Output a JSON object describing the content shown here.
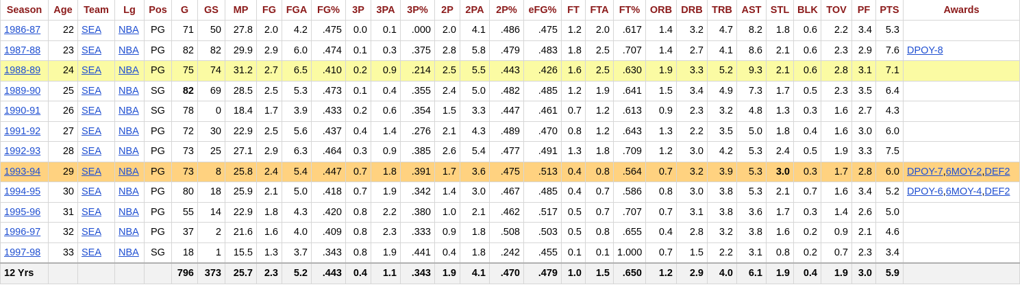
{
  "table": {
    "columns": [
      "Season",
      "Age",
      "Team",
      "Lg",
      "Pos",
      "G",
      "GS",
      "MP",
      "FG",
      "FGA",
      "FG%",
      "3P",
      "3PA",
      "3P%",
      "2P",
      "2PA",
      "2P%",
      "eFG%",
      "FT",
      "FTA",
      "FT%",
      "ORB",
      "DRB",
      "TRB",
      "AST",
      "STL",
      "BLK",
      "TOV",
      "PF",
      "PTS",
      "Awards"
    ],
    "rows": [
      {
        "season": "1986-87",
        "age": "22",
        "team": "SEA",
        "lg": "NBA",
        "pos": "PG",
        "g": "71",
        "gs": "50",
        "mp": "27.8",
        "fg": "2.0",
        "fga": "4.2",
        "fg_pct": ".475",
        "p3": "0.0",
        "pa3": "0.1",
        "p3_pct": ".000",
        "p2": "2.0",
        "pa2": "4.1",
        "p2_pct": ".486",
        "efg": ".475",
        "ft": "1.2",
        "fta": "2.0",
        "ft_pct": ".617",
        "orb": "1.4",
        "drb": "3.2",
        "trb": "4.7",
        "ast": "8.2",
        "stl": "1.8",
        "blk": "0.6",
        "tov": "2.2",
        "pf": "3.4",
        "pts": "5.3",
        "awards": []
      },
      {
        "season": "1987-88",
        "age": "23",
        "team": "SEA",
        "lg": "NBA",
        "pos": "PG",
        "g": "82",
        "gs": "82",
        "mp": "29.9",
        "fg": "2.9",
        "fga": "6.0",
        "fg_pct": ".474",
        "p3": "0.1",
        "pa3": "0.3",
        "p3_pct": ".375",
        "p2": "2.8",
        "pa2": "5.8",
        "p2_pct": ".479",
        "efg": ".483",
        "ft": "1.8",
        "fta": "2.5",
        "ft_pct": ".707",
        "orb": "1.4",
        "drb": "2.7",
        "trb": "4.1",
        "ast": "8.6",
        "stl": "2.1",
        "blk": "0.6",
        "tov": "2.3",
        "pf": "2.9",
        "pts": "7.6",
        "awards": [
          "DPOY-8"
        ]
      },
      {
        "season": "1988-89",
        "age": "24",
        "team": "SEA",
        "lg": "NBA",
        "pos": "PG",
        "g": "75",
        "gs": "74",
        "mp": "31.2",
        "fg": "2.7",
        "fga": "6.5",
        "fg_pct": ".410",
        "p3": "0.2",
        "pa3": "0.9",
        "p3_pct": ".214",
        "p2": "2.5",
        "pa2": "5.5",
        "p2_pct": ".443",
        "efg": ".426",
        "ft": "1.6",
        "fta": "2.5",
        "ft_pct": ".630",
        "orb": "1.9",
        "drb": "3.3",
        "trb": "5.2",
        "ast": "9.3",
        "stl": "2.1",
        "blk": "0.6",
        "tov": "2.8",
        "pf": "3.1",
        "pts": "7.1",
        "awards": []
      },
      {
        "season": "1989-90",
        "age": "25",
        "team": "SEA",
        "lg": "NBA",
        "pos": "SG",
        "g": "82",
        "gs": "69",
        "mp": "28.5",
        "fg": "2.5",
        "fga": "5.3",
        "fg_pct": ".473",
        "p3": "0.1",
        "pa3": "0.4",
        "p3_pct": ".355",
        "p2": "2.4",
        "pa2": "5.0",
        "p2_pct": ".482",
        "efg": ".485",
        "ft": "1.2",
        "fta": "1.9",
        "ft_pct": ".641",
        "orb": "1.5",
        "drb": "3.4",
        "trb": "4.9",
        "ast": "7.3",
        "stl": "1.7",
        "blk": "0.5",
        "tov": "2.3",
        "pf": "3.5",
        "pts": "6.4",
        "awards": []
      },
      {
        "season": "1990-91",
        "age": "26",
        "team": "SEA",
        "lg": "NBA",
        "pos": "SG",
        "g": "78",
        "gs": "0",
        "mp": "18.4",
        "fg": "1.7",
        "fga": "3.9",
        "fg_pct": ".433",
        "p3": "0.2",
        "pa3": "0.6",
        "p3_pct": ".354",
        "p2": "1.5",
        "pa2": "3.3",
        "p2_pct": ".447",
        "efg": ".461",
        "ft": "0.7",
        "fta": "1.2",
        "ft_pct": ".613",
        "orb": "0.9",
        "drb": "2.3",
        "trb": "3.2",
        "ast": "4.8",
        "stl": "1.3",
        "blk": "0.3",
        "tov": "1.6",
        "pf": "2.7",
        "pts": "4.3",
        "awards": []
      },
      {
        "season": "1991-92",
        "age": "27",
        "team": "SEA",
        "lg": "NBA",
        "pos": "PG",
        "g": "72",
        "gs": "30",
        "mp": "22.9",
        "fg": "2.5",
        "fga": "5.6",
        "fg_pct": ".437",
        "p3": "0.4",
        "pa3": "1.4",
        "p3_pct": ".276",
        "p2": "2.1",
        "pa2": "4.3",
        "p2_pct": ".489",
        "efg": ".470",
        "ft": "0.8",
        "fta": "1.2",
        "ft_pct": ".643",
        "orb": "1.3",
        "drb": "2.2",
        "trb": "3.5",
        "ast": "5.0",
        "stl": "1.8",
        "blk": "0.4",
        "tov": "1.6",
        "pf": "3.0",
        "pts": "6.0",
        "awards": []
      },
      {
        "season": "1992-93",
        "age": "28",
        "team": "SEA",
        "lg": "NBA",
        "pos": "PG",
        "g": "73",
        "gs": "25",
        "mp": "27.1",
        "fg": "2.9",
        "fga": "6.3",
        "fg_pct": ".464",
        "p3": "0.3",
        "pa3": "0.9",
        "p3_pct": ".385",
        "p2": "2.6",
        "pa2": "5.4",
        "p2_pct": ".477",
        "efg": ".491",
        "ft": "1.3",
        "fta": "1.8",
        "ft_pct": ".709",
        "orb": "1.2",
        "drb": "3.0",
        "trb": "4.2",
        "ast": "5.3",
        "stl": "2.4",
        "blk": "0.5",
        "tov": "1.9",
        "pf": "3.3",
        "pts": "7.5",
        "awards": []
      },
      {
        "season": "1993-94",
        "age": "29",
        "team": "SEA",
        "lg": "NBA",
        "pos": "PG",
        "g": "73",
        "gs": "8",
        "mp": "25.8",
        "fg": "2.4",
        "fga": "5.4",
        "fg_pct": ".447",
        "p3": "0.7",
        "pa3": "1.8",
        "p3_pct": ".391",
        "p2": "1.7",
        "pa2": "3.6",
        "p2_pct": ".475",
        "efg": ".513",
        "ft": "0.4",
        "fta": "0.8",
        "ft_pct": ".564",
        "orb": "0.7",
        "drb": "3.2",
        "trb": "3.9",
        "ast": "5.3",
        "stl": "3.0",
        "blk": "0.3",
        "tov": "1.7",
        "pf": "2.8",
        "pts": "6.0",
        "awards": [
          "DPOY-7",
          "6MOY-2",
          "DEF2"
        ]
      },
      {
        "season": "1994-95",
        "age": "30",
        "team": "SEA",
        "lg": "NBA",
        "pos": "PG",
        "g": "80",
        "gs": "18",
        "mp": "25.9",
        "fg": "2.1",
        "fga": "5.0",
        "fg_pct": ".418",
        "p3": "0.7",
        "pa3": "1.9",
        "p3_pct": ".342",
        "p2": "1.4",
        "pa2": "3.0",
        "p2_pct": ".467",
        "efg": ".485",
        "ft": "0.4",
        "fta": "0.7",
        "ft_pct": ".586",
        "orb": "0.8",
        "drb": "3.0",
        "trb": "3.8",
        "ast": "5.3",
        "stl": "2.1",
        "blk": "0.7",
        "tov": "1.6",
        "pf": "3.4",
        "pts": "5.2",
        "awards": [
          "DPOY-6",
          "6MOY-4",
          "DEF2"
        ]
      },
      {
        "season": "1995-96",
        "age": "31",
        "team": "SEA",
        "lg": "NBA",
        "pos": "PG",
        "g": "55",
        "gs": "14",
        "mp": "22.9",
        "fg": "1.8",
        "fga": "4.3",
        "fg_pct": ".420",
        "p3": "0.8",
        "pa3": "2.2",
        "p3_pct": ".380",
        "p2": "1.0",
        "pa2": "2.1",
        "p2_pct": ".462",
        "efg": ".517",
        "ft": "0.5",
        "fta": "0.7",
        "ft_pct": ".707",
        "orb": "0.7",
        "drb": "3.1",
        "trb": "3.8",
        "ast": "3.6",
        "stl": "1.7",
        "blk": "0.3",
        "tov": "1.4",
        "pf": "2.6",
        "pts": "5.0",
        "awards": []
      },
      {
        "season": "1996-97",
        "age": "32",
        "team": "SEA",
        "lg": "NBA",
        "pos": "PG",
        "g": "37",
        "gs": "2",
        "mp": "21.6",
        "fg": "1.6",
        "fga": "4.0",
        "fg_pct": ".409",
        "p3": "0.8",
        "pa3": "2.3",
        "p3_pct": ".333",
        "p2": "0.9",
        "pa2": "1.8",
        "p2_pct": ".508",
        "efg": ".503",
        "ft": "0.5",
        "fta": "0.8",
        "ft_pct": ".655",
        "orb": "0.4",
        "drb": "2.8",
        "trb": "3.2",
        "ast": "3.8",
        "stl": "1.6",
        "blk": "0.2",
        "tov": "0.9",
        "pf": "2.1",
        "pts": "4.6",
        "awards": []
      },
      {
        "season": "1997-98",
        "age": "33",
        "team": "SEA",
        "lg": "NBA",
        "pos": "SG",
        "g": "18",
        "gs": "1",
        "mp": "15.5",
        "fg": "1.3",
        "fga": "3.7",
        "fg_pct": ".343",
        "p3": "0.8",
        "pa3": "1.9",
        "p3_pct": ".441",
        "p2": "0.4",
        "pa2": "1.8",
        "p2_pct": ".242",
        "efg": ".455",
        "ft": "0.1",
        "fta": "0.1",
        "ft_pct": "1.000",
        "orb": "0.7",
        "drb": "1.5",
        "trb": "2.2",
        "ast": "3.1",
        "stl": "0.8",
        "blk": "0.2",
        "tov": "0.7",
        "pf": "2.3",
        "pts": "3.4",
        "awards": []
      }
    ],
    "footer": {
      "season": "12 Yrs",
      "age": "",
      "team": "",
      "lg": "",
      "pos": "",
      "g": "796",
      "gs": "373",
      "mp": "25.7",
      "fg": "2.3",
      "fga": "5.2",
      "fg_pct": ".443",
      "p3": "0.4",
      "pa3": "1.1",
      "p3_pct": ".343",
      "p2": "1.9",
      "pa2": "4.1",
      "p2_pct": ".470",
      "efg": ".479",
      "ft": "1.0",
      "fta": "1.5",
      "ft_pct": ".650",
      "orb": "1.2",
      "drb": "2.9",
      "trb": "4.0",
      "ast": "6.1",
      "stl": "1.9",
      "blk": "0.4",
      "tov": "1.9",
      "pf": "3.0",
      "pts": "5.9",
      "awards": ""
    },
    "highlights": {
      "yellow_row": "1988-89",
      "orange_row": "1993-94",
      "bold_cells": [
        {
          "season": "1989-90",
          "field": "g"
        },
        {
          "season": "1993-94",
          "field": "stl"
        }
      ]
    },
    "colors": {
      "header_text": "#8b1a1a",
      "link": "#1f4fd1",
      "highlight_yellow": "#fbfba3",
      "highlight_orange": "#ffd280",
      "footer_bg": "#f2f2f2"
    }
  }
}
